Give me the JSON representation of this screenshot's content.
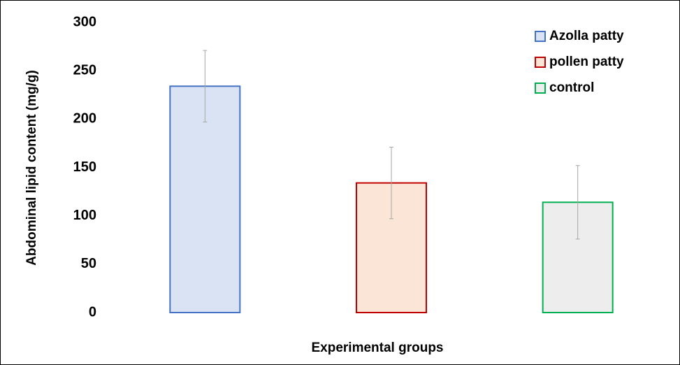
{
  "chart_data": {
    "type": "bar",
    "x_label": "Experimental groups",
    "y_label": "Abdominal lipid content (mg/g)",
    "categories": [
      null,
      null,
      null
    ],
    "series": [
      {
        "name": "Azolla patty",
        "color": "#4472c4",
        "fill": "#dae3f3",
        "values": [
          234,
          null,
          null
        ],
        "errors": [
          37,
          null,
          null
        ]
      },
      {
        "name": "pollen patty",
        "color": "#c00000",
        "fill": "#fbe5d6",
        "values": [
          null,
          134,
          null
        ],
        "errors": [
          null,
          37,
          null
        ]
      },
      {
        "name": "control",
        "color": "#00b050",
        "fill": "#ededed",
        "values": [
          null,
          null,
          114
        ],
        "errors": [
          null,
          null,
          38
        ]
      }
    ],
    "error_color": "#a6a6a6",
    "ylim": [
      0,
      300
    ],
    "yticks": [
      0,
      50,
      100,
      150,
      200,
      250,
      300
    ],
    "grid": false,
    "legend": "top-right"
  }
}
